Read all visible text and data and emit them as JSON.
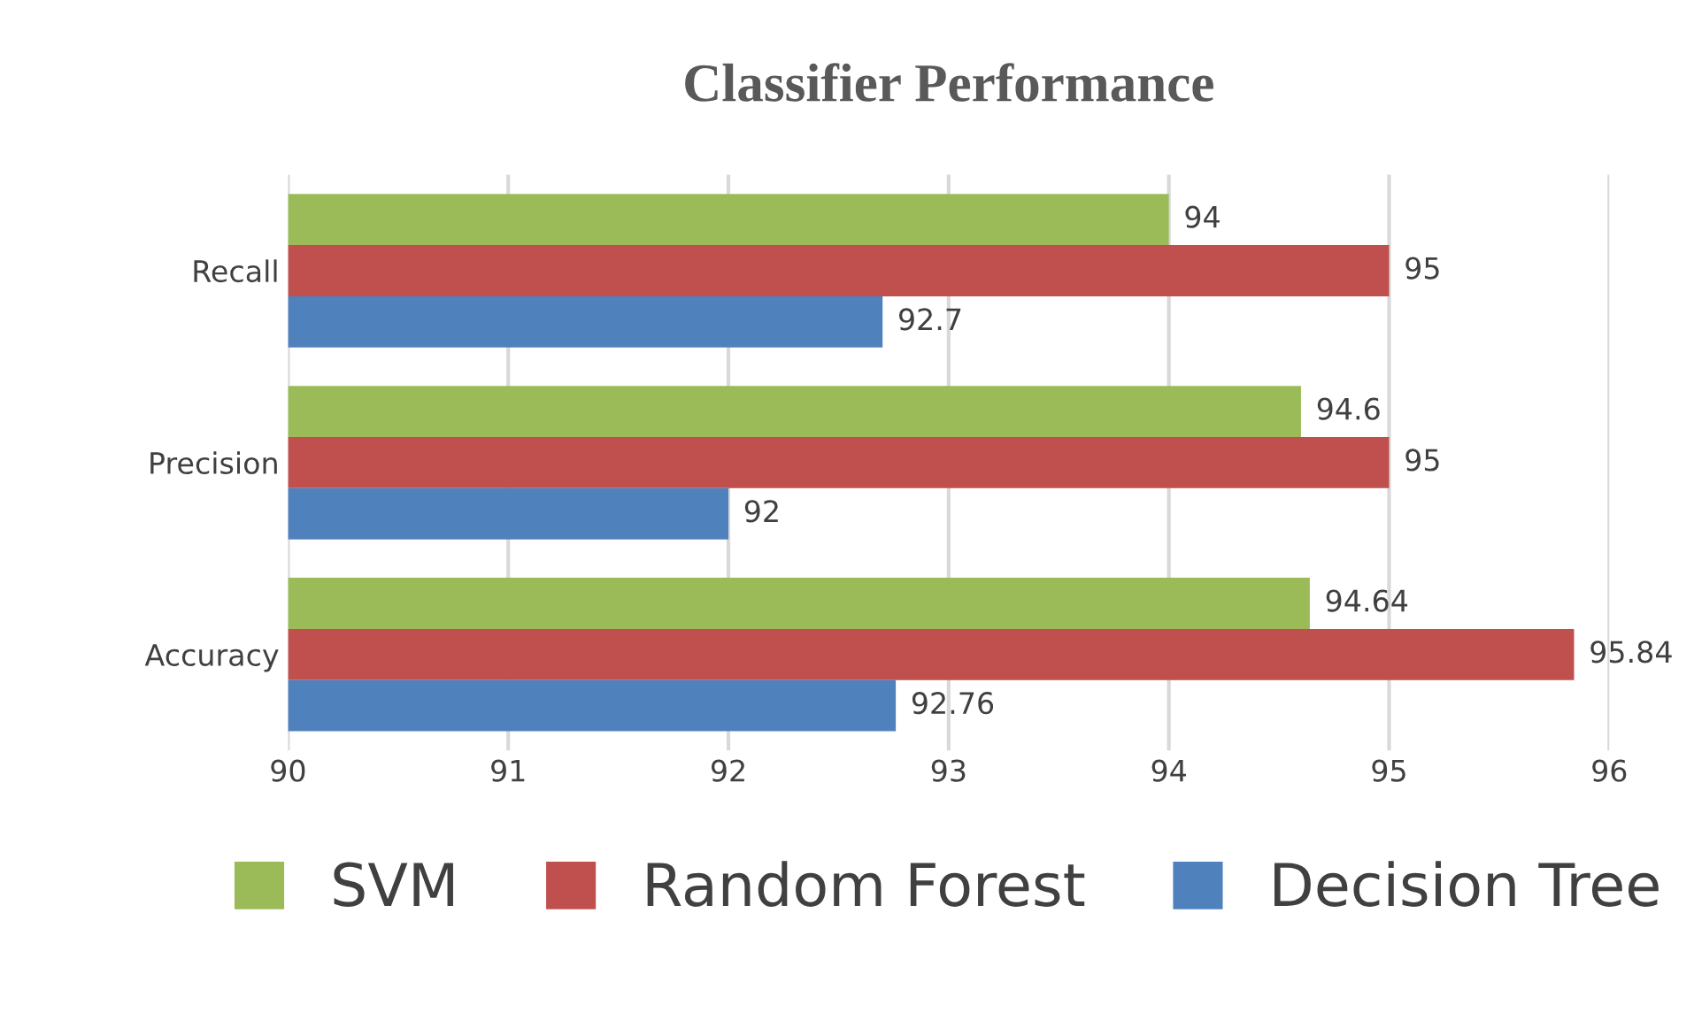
{
  "chart_data": {
    "type": "bar",
    "orientation": "horizontal",
    "title": "Classifier Performance",
    "categories": [
      "Recall",
      "Precision",
      "Accuracy"
    ],
    "series": [
      {
        "name": "SVM",
        "color": "#9bbb59",
        "values": [
          94,
          94.6,
          94.64
        ]
      },
      {
        "name": "Random Forest",
        "color": "#c0504d",
        "values": [
          95,
          95,
          95.84
        ]
      },
      {
        "name": "Decision Tree",
        "color": "#4f81bd",
        "values": [
          92.7,
          92,
          92.76
        ]
      }
    ],
    "xlim": [
      90,
      96
    ],
    "xticks": [
      90,
      91,
      92,
      93,
      94,
      95,
      96
    ],
    "grid": "x",
    "legend": "bottom",
    "data_labels": true
  }
}
